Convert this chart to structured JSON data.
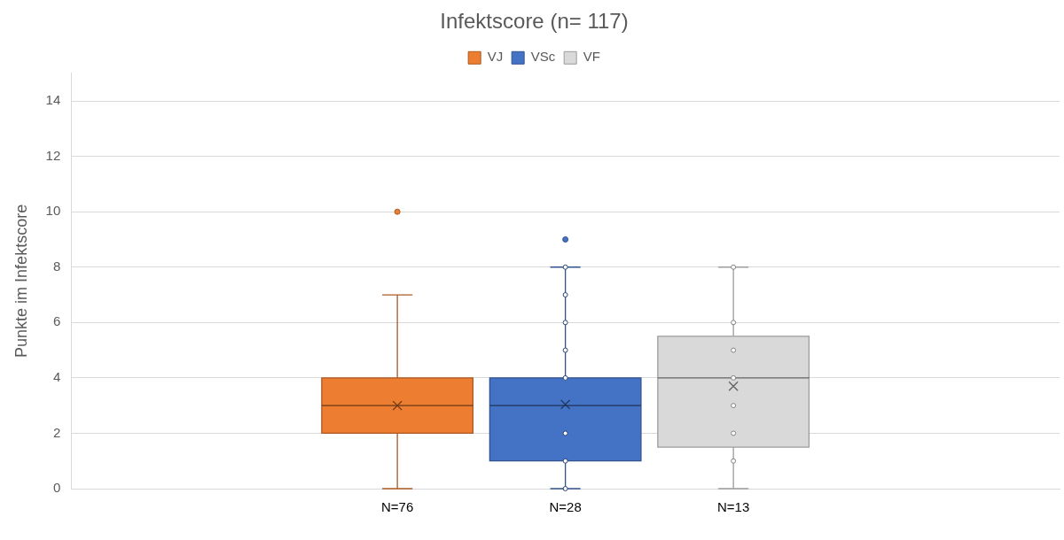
{
  "chart_data": {
    "type": "box",
    "title": "Infektscore (n= 117)",
    "ylabel": "Punkte im Infektscore",
    "categories": [
      null
    ],
    "series": [
      {
        "name": "VJ",
        "color": "#ed7d31",
        "boxes": [
          {
            "low": 0,
            "q1": 2,
            "median": 3,
            "q3": 4,
            "high": 7,
            "mean": 3,
            "outliers": [
              10
            ]
          }
        ]
      },
      {
        "name": "VSc",
        "color": "#4472c4",
        "boxes": [
          {
            "low": 0,
            "q1": 1,
            "median": 3,
            "q3": 4,
            "high": 8,
            "mean": 3.04,
            "outliers": [
              0,
              1,
              2,
              4,
              5,
              6,
              7,
              8,
              9
            ]
          }
        ]
      },
      {
        "name": "VF",
        "color": "#d9d9d9",
        "boxes": [
          {
            "low": 0,
            "q1": 1.5,
            "median": 4,
            "q3": 5.5,
            "high": 8,
            "mean": 3.7,
            "outliers": [
              1,
              2,
              3,
              4,
              5,
              6,
              8
            ]
          }
        ]
      }
    ],
    "annotations": [
      "N=76",
      "N=28",
      "N=13"
    ],
    "ylim": [
      0,
      15
    ],
    "yticks": [
      0,
      2,
      4,
      6,
      8,
      10,
      12,
      14
    ],
    "grid": "y",
    "legend": "top"
  }
}
